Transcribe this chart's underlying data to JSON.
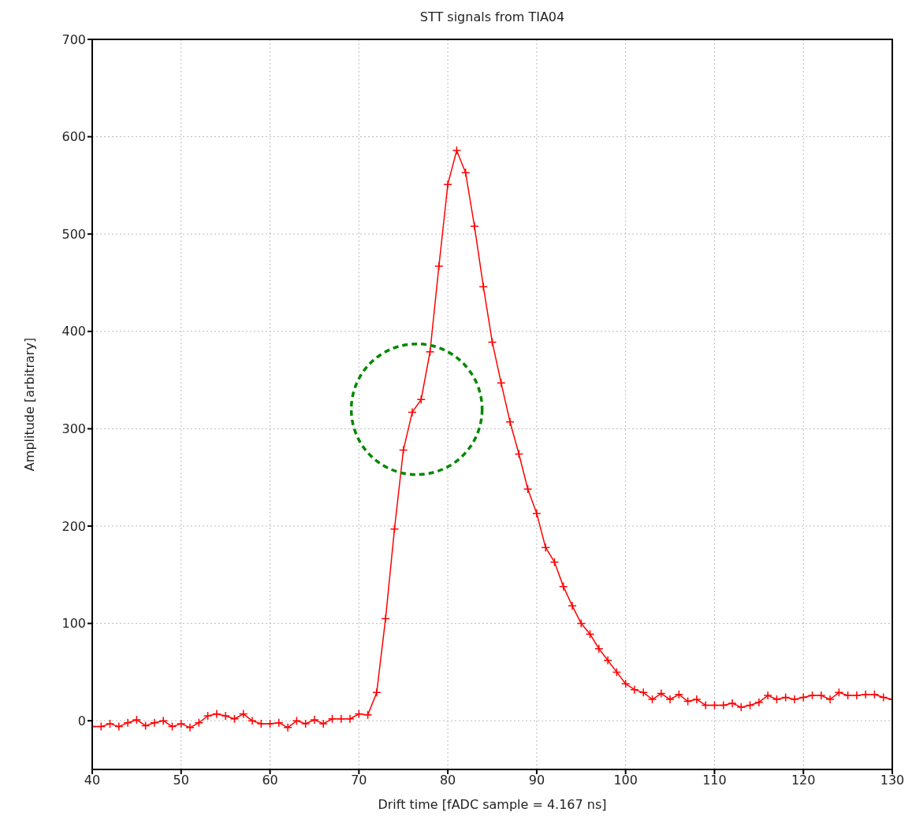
{
  "chart_data": {
    "type": "line",
    "title": "STT signals from TIA04",
    "xlabel": "Drift time [fADC sample = 4.167 ns]",
    "ylabel": "Amplitude [arbitrary]",
    "x": [
      40,
      41,
      42,
      43,
      44,
      45,
      46,
      47,
      48,
      49,
      50,
      51,
      52,
      53,
      54,
      55,
      56,
      57,
      58,
      59,
      60,
      61,
      62,
      63,
      64,
      65,
      66,
      67,
      68,
      69,
      70,
      71,
      72,
      73,
      74,
      75,
      76,
      77,
      78,
      79,
      80,
      81,
      82,
      83,
      84,
      85,
      86,
      87,
      88,
      89,
      90,
      91,
      92,
      93,
      94,
      95,
      96,
      97,
      98,
      99,
      100,
      101,
      102,
      103,
      104,
      105,
      106,
      107,
      108,
      109,
      110,
      111,
      112,
      113,
      114,
      115,
      116,
      117,
      118,
      119,
      120,
      121,
      122,
      123,
      124,
      125,
      126,
      127,
      128,
      129,
      130
    ],
    "series": [
      {
        "color": "#ff0000",
        "values": [
          -6,
          -6,
          -3,
          -6,
          -2,
          1,
          -5,
          -2,
          0,
          -6,
          -3,
          -7,
          -2,
          5,
          7,
          5,
          2,
          7,
          0,
          -3,
          -3,
          -2,
          -7,
          0,
          -3,
          1,
          -3,
          2,
          2,
          2,
          7,
          6,
          29,
          105,
          197,
          278,
          317,
          330,
          379,
          467,
          551,
          586,
          563,
          508,
          446,
          389,
          347,
          307,
          274,
          238,
          213,
          178,
          163,
          138,
          118,
          100,
          89,
          74,
          62,
          50,
          38,
          32,
          29,
          22,
          28,
          22,
          27,
          20,
          22,
          16,
          16,
          16,
          18,
          14,
          16,
          19,
          26,
          22,
          24,
          22,
          24,
          26,
          26,
          22,
          29,
          26,
          26,
          27,
          27,
          24,
          22
        ]
      }
    ],
    "xlim": [
      40,
      130
    ],
    "xticks": [
      40,
      50,
      60,
      70,
      80,
      90,
      100,
      110,
      120,
      130
    ],
    "ylim": [
      -50,
      700
    ],
    "yticks": [
      0,
      100,
      200,
      300,
      400,
      500,
      600,
      700
    ],
    "grid": true,
    "marker": "cross",
    "line_style": "solid"
  }
}
